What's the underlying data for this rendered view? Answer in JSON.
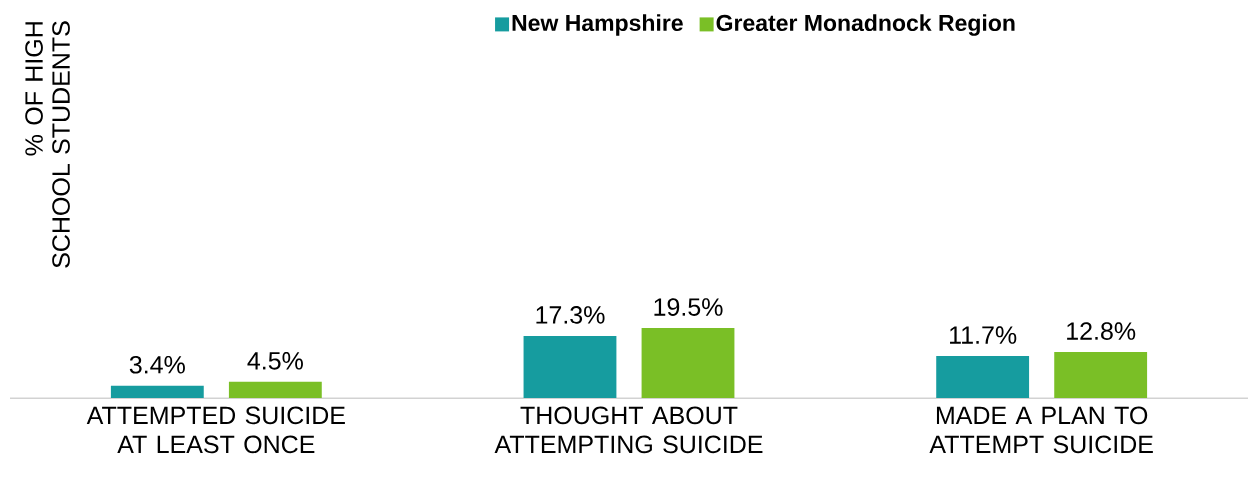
{
  "chart_data": {
    "type": "bar",
    "ylabel": "% OF HIGH SCHOOL STUDENTS",
    "categories": [
      "ATTEMPTED SUICIDE AT LEAST ONCE",
      "THOUGHT ABOUT ATTEMPTING SUICIDE",
      "MADE A PLAN TO ATTEMPT SUICIDE"
    ],
    "series": [
      {
        "name": "New Hampshire",
        "color": "#169c9f",
        "values": [
          3.4,
          17.3,
          11.7
        ],
        "value_labels": [
          "3.4%",
          "17.3%",
          "11.7%"
        ]
      },
      {
        "name": "Greater Monadnock Region",
        "color": "#7abf26",
        "values": [
          4.5,
          19.5,
          12.8
        ],
        "value_labels": [
          "4.5%",
          "19.5%",
          "12.8%"
        ]
      }
    ],
    "legend": "top"
  }
}
